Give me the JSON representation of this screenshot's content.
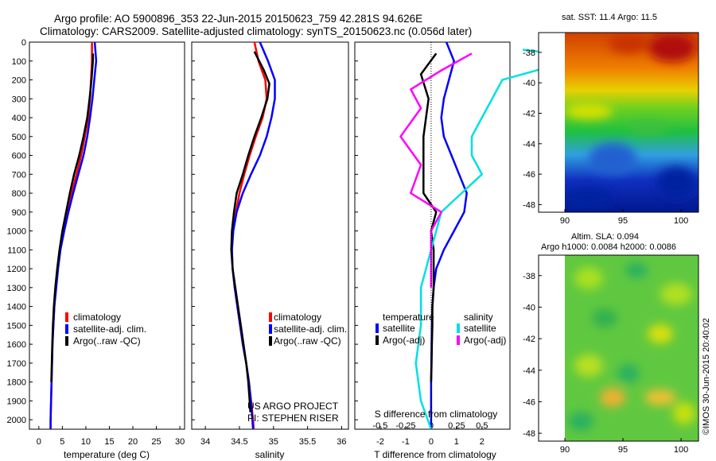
{
  "header": {
    "line1": "Argo profile: AO 5900896_353 22-Jun-2015 20150623_759 42.281S 94.626E",
    "line2": "Climatology: CARS2009. Satellite-adjusted climatology: synTS_20150623.nc (0.056d later)"
  },
  "credits": {
    "project": "US ARGO PROJECT",
    "pi": "PI: STEPHEN RISER",
    "stamp": "©IMOS 30-Jun-2015 20:40:02"
  },
  "colors": {
    "climatology": "#ff0000",
    "satellite": "#0000ff",
    "argo": "#000000",
    "satellite_salinity": "#00e0e0",
    "argo_salinity": "#ff00ff"
  },
  "chart_data": [
    {
      "type": "line",
      "id": "temperature",
      "xlabel": "temperature (deg C)",
      "ylabel": "",
      "xlim": [
        -2,
        31
      ],
      "ylim": [
        2050,
        0
      ],
      "xticks": [
        0,
        5,
        10,
        15,
        20,
        25,
        30
      ],
      "yticks": [
        0,
        100,
        200,
        300,
        400,
        500,
        600,
        700,
        800,
        900,
        1000,
        1100,
        1200,
        1300,
        1400,
        1500,
        1600,
        1700,
        1800,
        1900,
        2000
      ],
      "legend": [
        "climatology",
        "satellite-adj. clim.",
        "Argo(..raw -QC)"
      ],
      "legend_position": "bottom-right",
      "series": [
        {
          "name": "climatology",
          "color": "#ff0000",
          "points": [
            [
              11.3,
              0
            ],
            [
              11.3,
              100
            ],
            [
              11.1,
              200
            ],
            [
              10.9,
              300
            ],
            [
              10.5,
              400
            ],
            [
              9.8,
              500
            ],
            [
              9.0,
              600
            ],
            [
              8.0,
              700
            ],
            [
              7.0,
              800
            ],
            [
              6.0,
              900
            ],
            [
              5.2,
              1000
            ],
            [
              4.5,
              1100
            ],
            [
              4.0,
              1200
            ],
            [
              3.6,
              1300
            ],
            [
              3.3,
              1400
            ],
            [
              3.1,
              1500
            ],
            [
              2.9,
              1600
            ],
            [
              2.8,
              1700
            ],
            [
              2.7,
              1800
            ],
            [
              2.6,
              1900
            ],
            [
              2.5,
              2000
            ],
            [
              2.5,
              2050
            ]
          ]
        },
        {
          "name": "satellite-adj. clim.",
          "color": "#0000ff",
          "points": [
            [
              11.9,
              0
            ],
            [
              12.2,
              100
            ],
            [
              11.8,
              200
            ],
            [
              11.4,
              300
            ],
            [
              10.9,
              400
            ],
            [
              10.3,
              500
            ],
            [
              9.5,
              600
            ],
            [
              8.4,
              700
            ],
            [
              7.3,
              800
            ],
            [
              6.3,
              900
            ],
            [
              5.4,
              1000
            ],
            [
              4.6,
              1100
            ],
            [
              4.1,
              1200
            ],
            [
              3.7,
              1300
            ],
            [
              3.3,
              1400
            ],
            [
              3.1,
              1500
            ],
            [
              2.9,
              1600
            ],
            [
              2.8,
              1700
            ],
            [
              2.7,
              1800
            ],
            [
              2.6,
              1900
            ],
            [
              2.5,
              2000
            ],
            [
              2.5,
              2050
            ]
          ]
        },
        {
          "name": "Argo(..raw -QC)",
          "color": "#000000",
          "points": [
            [
              11.5,
              60
            ],
            [
              11.5,
              100
            ],
            [
              11.2,
              200
            ],
            [
              10.8,
              300
            ],
            [
              10.3,
              400
            ],
            [
              9.5,
              500
            ],
            [
              8.6,
              600
            ],
            [
              7.5,
              700
            ],
            [
              6.6,
              800
            ],
            [
              5.8,
              900
            ],
            [
              5.0,
              1000
            ],
            [
              4.4,
              1100
            ],
            [
              3.9,
              1200
            ],
            [
              3.5,
              1300
            ],
            [
              3.2,
              1400
            ],
            [
              3.0,
              1500
            ],
            [
              2.85,
              1600
            ],
            [
              2.75,
              1700
            ],
            [
              2.65,
              1800
            ]
          ]
        }
      ]
    },
    {
      "type": "line",
      "id": "salinity",
      "xlabel": "salinity",
      "ylabel": "",
      "xlim": [
        33.8,
        36.1
      ],
      "ylim": [
        2050,
        0
      ],
      "xticks": [
        34,
        34.5,
        35,
        35.5,
        36
      ],
      "legend": [
        "climatology",
        "satellite-adj. clim.",
        "Argo(..raw -QC)"
      ],
      "legend_position": "bottom-right",
      "series": [
        {
          "name": "climatology",
          "color": "#ff0000",
          "points": [
            [
              34.72,
              0
            ],
            [
              34.78,
              100
            ],
            [
              34.88,
              200
            ],
            [
              34.9,
              300
            ],
            [
              34.84,
              400
            ],
            [
              34.74,
              500
            ],
            [
              34.65,
              600
            ],
            [
              34.57,
              700
            ],
            [
              34.5,
              800
            ],
            [
              34.45,
              900
            ],
            [
              34.41,
              1000
            ],
            [
              34.39,
              1100
            ],
            [
              34.4,
              1200
            ],
            [
              34.43,
              1300
            ],
            [
              34.47,
              1400
            ],
            [
              34.51,
              1500
            ],
            [
              34.55,
              1600
            ],
            [
              34.6,
              1700
            ],
            [
              34.64,
              1800
            ],
            [
              34.67,
              1900
            ],
            [
              34.7,
              2000
            ],
            [
              34.71,
              2050
            ]
          ]
        },
        {
          "name": "satellite-adj. clim.",
          "color": "#0000ff",
          "points": [
            [
              34.8,
              0
            ],
            [
              34.92,
              100
            ],
            [
              35.02,
              200
            ],
            [
              35.02,
              300
            ],
            [
              34.97,
              400
            ],
            [
              34.9,
              500
            ],
            [
              34.8,
              600
            ],
            [
              34.67,
              700
            ],
            [
              34.55,
              800
            ],
            [
              34.46,
              900
            ],
            [
              34.41,
              1000
            ],
            [
              34.39,
              1100
            ],
            [
              34.4,
              1200
            ],
            [
              34.43,
              1300
            ],
            [
              34.47,
              1400
            ],
            [
              34.51,
              1500
            ],
            [
              34.55,
              1600
            ],
            [
              34.6,
              1700
            ],
            [
              34.64,
              1800
            ],
            [
              34.67,
              1900
            ],
            [
              34.69,
              2000
            ],
            [
              34.7,
              2050
            ]
          ]
        },
        {
          "name": "Argo(..raw -QC)",
          "color": "#000000",
          "points": [
            [
              34.72,
              50
            ],
            [
              34.86,
              150
            ],
            [
              34.94,
              220
            ],
            [
              34.91,
              300
            ],
            [
              34.82,
              400
            ],
            [
              34.72,
              500
            ],
            [
              34.63,
              600
            ],
            [
              34.55,
              700
            ],
            [
              34.46,
              800
            ],
            [
              34.42,
              900
            ],
            [
              34.39,
              1000
            ],
            [
              34.38,
              1100
            ],
            [
              34.4,
              1200
            ],
            [
              34.44,
              1300
            ],
            [
              34.48,
              1400
            ],
            [
              34.52,
              1500
            ],
            [
              34.56,
              1600
            ],
            [
              34.6,
              1700
            ],
            [
              34.63,
              1800
            ],
            [
              34.65,
              1900
            ],
            [
              34.66,
              1960
            ]
          ]
        }
      ]
    },
    {
      "type": "line",
      "id": "difference",
      "xlabel": "T difference from climatology",
      "xlabel2": "S difference from climatology",
      "xlim": [
        -3,
        3.1
      ],
      "ylim": [
        2050,
        0
      ],
      "xticks": [
        -2,
        -1,
        0,
        1,
        2
      ],
      "xticks2": [
        -0.5,
        -0.25,
        0,
        0.25,
        0.5
      ],
      "legend_temperature": {
        "title": "temperature",
        "items": [
          "satellite",
          "Argo(-adj)"
        ]
      },
      "legend_salinity": {
        "title": "salinity",
        "items": [
          "satellite",
          "Argo(-adj)"
        ]
      },
      "series": [
        {
          "name": "satellite",
          "group": "temperature",
          "color": "#0000ff",
          "points": [
            [
              0.6,
              0
            ],
            [
              0.9,
              100
            ],
            [
              0.7,
              200
            ],
            [
              0.5,
              300
            ],
            [
              0.4,
              400
            ],
            [
              0.5,
              500
            ],
            [
              0.8,
              600
            ],
            [
              1.1,
              700
            ],
            [
              1.4,
              800
            ],
            [
              1.3,
              900
            ],
            [
              0.9,
              1000
            ],
            [
              0.5,
              1100
            ],
            [
              0.2,
              1200
            ],
            [
              0.1,
              1300
            ],
            [
              0.05,
              1400
            ],
            [
              0.03,
              1500
            ],
            [
              0.02,
              1600
            ],
            [
              0.01,
              1700
            ],
            [
              0.0,
              1800
            ],
            [
              0.0,
              2050
            ]
          ]
        },
        {
          "name": "Argo(-adj)",
          "group": "temperature",
          "color": "#000000",
          "points": [
            [
              0.2,
              60
            ],
            [
              -0.4,
              170
            ],
            [
              -0.1,
              300
            ],
            [
              -0.3,
              500
            ],
            [
              -0.3,
              600
            ],
            [
              -0.3,
              800
            ],
            [
              0.2,
              900
            ],
            [
              0.0,
              1000
            ],
            [
              0.1,
              1100
            ],
            [
              0.1,
              1200
            ],
            [
              0.1,
              1300
            ],
            [
              0.05,
              1400
            ],
            [
              0.05,
              1500
            ],
            [
              0.03,
              1600
            ],
            [
              0.02,
              1700
            ],
            [
              0.0,
              1800
            ]
          ]
        },
        {
          "name": "satellite",
          "group": "salinity",
          "color": "#00e0e0",
          "points": [
            [
              0.9,
              40
            ],
            [
              1.5,
              80
            ],
            [
              0.7,
              200
            ],
            [
              0.6,
              300
            ],
            [
              0.5,
              400
            ],
            [
              0.4,
              500
            ],
            [
              0.4,
              600
            ],
            [
              0.5,
              700
            ],
            [
              0.3,
              800
            ],
            [
              0.1,
              900
            ],
            [
              0.0,
              1100
            ],
            [
              -0.1,
              1300
            ],
            [
              -0.1,
              1500
            ],
            [
              -0.15,
              1700
            ],
            [
              -0.1,
              1900
            ],
            [
              0.0,
              2050
            ]
          ]
        },
        {
          "name": "Argo(-adj)",
          "group": "salinity",
          "color": "#ff00ff",
          "points": [
            [
              0.4,
              60
            ],
            [
              0.1,
              150
            ],
            [
              -0.2,
              250
            ],
            [
              -0.1,
              350
            ],
            [
              -0.3,
              500
            ],
            [
              -0.1,
              650
            ],
            [
              -0.2,
              800
            ],
            [
              0.1,
              900
            ],
            [
              0.0,
              1000
            ],
            [
              0.0,
              1100
            ],
            [
              0.0,
              1200
            ],
            [
              0.0,
              1300
            ]
          ]
        }
      ]
    },
    {
      "type": "heatmap",
      "id": "sst_map",
      "title": "sat. SST: 11.4 Argo: 11.5",
      "xlim": [
        88,
        101.5
      ],
      "ylim": [
        -48.5,
        -36.7
      ],
      "xticks": [
        90,
        95,
        100
      ],
      "yticks": [
        -38,
        -40,
        -42,
        -44,
        -46,
        -48
      ],
      "colormap": "jet",
      "description_values": "warm (red) to the north, cold (blue) to the south"
    },
    {
      "type": "heatmap",
      "id": "sla_map",
      "title": "Altim. SLA: 0.094",
      "subtitle": "Argo h1000: 0.0084 h2000: 0.0086",
      "xlim": [
        88,
        101.5
      ],
      "ylim": [
        -48.5,
        -36.7
      ],
      "xticks": [
        90,
        95,
        100
      ],
      "yticks": [
        -38,
        -40,
        -42,
        -44,
        -46,
        -48
      ],
      "colormap": "jet"
    }
  ]
}
